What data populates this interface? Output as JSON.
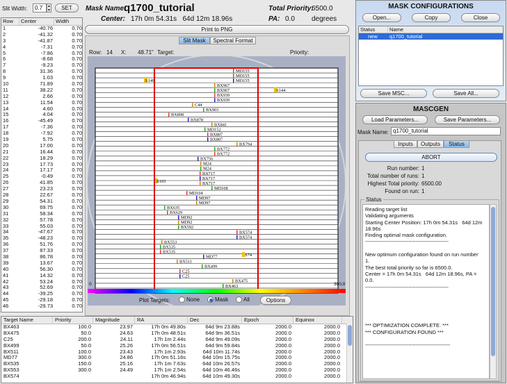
{
  "slit_width": {
    "label": "Slit Width:",
    "value": "0.7",
    "set_label": "SET"
  },
  "slit_table": {
    "headers": [
      "Row",
      "Center",
      "Width"
    ],
    "rows": [
      [
        "1",
        "-40.76",
        "0.70"
      ],
      [
        "2",
        "-41.32",
        "0.70"
      ],
      [
        "3",
        "-41.87",
        "0.70"
      ],
      [
        "4",
        "-7.31",
        "0.70"
      ],
      [
        "5",
        "-7.86",
        "0.70"
      ],
      [
        "6",
        "-8.68",
        "0.70"
      ],
      [
        "7",
        "-9.23",
        "0.70"
      ],
      [
        "8",
        "31.36",
        "0.70"
      ],
      [
        "9",
        "1.03",
        "0.70"
      ],
      [
        "10",
        "71.89",
        "0.70"
      ],
      [
        "11",
        "38.22",
        "0.70"
      ],
      [
        "12",
        "2.66",
        "0.70"
      ],
      [
        "13",
        "11.54",
        "0.70"
      ],
      [
        "14",
        "4.60",
        "0.70"
      ],
      [
        "15",
        "4.04",
        "0.70"
      ],
      [
        "16",
        "-45.49",
        "0.70"
      ],
      [
        "17",
        "-7.36",
        "0.70"
      ],
      [
        "18",
        "-7.92",
        "0.70"
      ],
      [
        "19",
        "5.75",
        "0.70"
      ],
      [
        "20",
        "17.00",
        "0.70"
      ],
      [
        "21",
        "16.44",
        "0.70"
      ],
      [
        "22",
        "18.29",
        "0.70"
      ],
      [
        "23",
        "17.73",
        "0.70"
      ],
      [
        "24",
        "17.17",
        "0.70"
      ],
      [
        "25",
        "-0.49",
        "0.70"
      ],
      [
        "26",
        "41.85",
        "0.70"
      ],
      [
        "27",
        "23.23",
        "0.70"
      ],
      [
        "28",
        "22.67",
        "0.70"
      ],
      [
        "29",
        "54.31",
        "0.70"
      ],
      [
        "30",
        "69.75",
        "0.70"
      ],
      [
        "31",
        "58.34",
        "0.70"
      ],
      [
        "32",
        "57.78",
        "0.70"
      ],
      [
        "33",
        "55.03",
        "0.70"
      ],
      [
        "34",
        "-47.67",
        "0.70"
      ],
      [
        "35",
        "-48.23",
        "0.70"
      ],
      [
        "36",
        "51.76",
        "0.70"
      ],
      [
        "37",
        "87.33",
        "0.70"
      ],
      [
        "38",
        "86.78",
        "0.70"
      ],
      [
        "39",
        "13.67",
        "0.70"
      ],
      [
        "40",
        "56.30",
        "0.70"
      ],
      [
        "41",
        "14.32",
        "0.70"
      ],
      [
        "42",
        "53.24",
        "0.70"
      ],
      [
        "43",
        "52.69",
        "0.70"
      ],
      [
        "44",
        "-39.25",
        "0.70"
      ],
      [
        "45",
        "-29.18",
        "0.70"
      ],
      [
        "46",
        "-29.73",
        "0.70"
      ]
    ]
  },
  "header": {
    "mask_name_label": "Mask Name:",
    "mask_name": "q1700_tutorial",
    "total_priority_label": "Total Priority:",
    "total_priority": "6500.0",
    "center_label": "Center:",
    "center_value": "17h 0m 54.31s   64d 12m 18.96s",
    "pa_label": "PA:",
    "pa_value": "0.0",
    "pa_unit": "degrees"
  },
  "print_button": "Print to PNG",
  "view_tabs": [
    "Slit Mask",
    "Spectral Format"
  ],
  "info_bar": {
    "row_label": "Row:",
    "row_value": "14",
    "x_label": "X:",
    "x_value": "48.71\"",
    "target_label": "Target:",
    "priority_label": "Priority:"
  },
  "plot": {
    "scale_min": "0",
    "scale_max": "300.0",
    "labels": [
      {
        "t": "MD155",
        "c": "MD155"
      },
      {
        "t": "MD155"
      },
      {
        "t": "MD155"
      },
      {
        "t": "BX967"
      },
      {
        "t": "BX967"
      },
      {
        "t": "BX939"
      },
      {
        "t": "BX939"
      },
      {
        "t": "C44"
      },
      {
        "t": "BX903"
      },
      {
        "t": "BX898"
      },
      {
        "t": "BX878"
      },
      {
        "t": "BX841"
      },
      {
        "t": "MD152"
      },
      {
        "t": "BX807"
      },
      {
        "t": "BX807"
      },
      {
        "t": "BX794"
      },
      {
        "t": "BX772"
      },
      {
        "t": "BX772"
      },
      {
        "t": "BX756"
      },
      {
        "t": "M24"
      },
      {
        "t": "M24"
      },
      {
        "t": "BX717"
      },
      {
        "t": "BX717"
      },
      {
        "t": "BX717"
      },
      {
        "t": "MD108"
      },
      {
        "t": "MD104"
      },
      {
        "t": "MD97"
      },
      {
        "t": "MD97"
      },
      {
        "t": "BX635"
      },
      {
        "t": "BX629"
      },
      {
        "t": "MD92"
      },
      {
        "t": "MD92"
      },
      {
        "t": "BX592"
      },
      {
        "t": "BX574"
      },
      {
        "t": "BX574"
      },
      {
        "t": "BX553"
      },
      {
        "t": "BX535"
      },
      {
        "t": "BX535"
      },
      {
        "t": "MD77"
      },
      {
        "t": "BX511"
      },
      {
        "t": "BX499"
      },
      {
        "t": "C25"
      },
      {
        "t": "C25"
      },
      {
        "t": "BX475"
      },
      {
        "t": "BX463"
      },
      {
        "t": "BX463"
      }
    ],
    "side_labels": {
      "s149": "S149",
      "s144": "S144",
      "s103": "S103",
      "s74": "S74"
    }
  },
  "plot_targets": {
    "label": "Plot Targets:",
    "options": [
      "None",
      "Mask",
      "All"
    ],
    "selected": "Mask",
    "options_button": "Options"
  },
  "target_table": {
    "headers": [
      "Target Name",
      "Priority",
      "Magnitude",
      "RA",
      "Dec",
      "Epoch",
      "Equinox"
    ],
    "rows": [
      [
        "BX463",
        "100.0",
        "23.97",
        "17h 0m 49.80s",
        "64d 9m 23.88s",
        "2000.0",
        "2000.0"
      ],
      [
        "BX475",
        "50.0",
        "24.63",
        "17h 0m 48.51s",
        "64d 9m 36.51s",
        "2000.0",
        "2000.0"
      ],
      [
        "C25",
        "200.0",
        "24.11",
        "17h 1m 2.44s",
        "64d 9m 49.09s",
        "2000.0",
        "2000.0"
      ],
      [
        "BX499",
        "50.0",
        "25.26",
        "17h 0m 56.51s",
        "64d 9m 59.84s",
        "2000.0",
        "2000.0"
      ],
      [
        "BX511",
        "100.0",
        "23.43",
        "17h 1m 2.93s",
        "64d 10m 11.74s",
        "2000.0",
        "2000.0"
      ],
      [
        "MD77",
        "300.0",
        "24.86",
        "17h 0m 51.16s",
        "64d 10m 15.75s",
        "2000.0",
        "2000.0"
      ],
      [
        "BX535",
        "150.0",
        "25.16",
        "17h 1m 7.63s",
        "64d 10m 26.57s",
        "2000.0",
        "2000.0"
      ],
      [
        "BX553",
        "300.0",
        "24.49",
        "17h 1m 2.54s",
        "64d 10m 46.46s",
        "2000.0",
        "2000.0"
      ],
      [
        "BX574",
        "",
        "",
        "17h 0m 46.94s",
        "64d 10m 49.30s",
        "2000.0",
        "2000.0"
      ]
    ]
  },
  "mask_config": {
    "title": "MASK CONFIGURATIONS",
    "open": "Open...",
    "copy": "Copy",
    "close": "Close",
    "col_status": "Status",
    "col_name": "Name",
    "rows": [
      {
        "status": "new",
        "name": "q1700_tutorial"
      }
    ],
    "save_msc": "Save MSC...",
    "save_all": "Save All..."
  },
  "mascgen": {
    "title": "MASCGEN",
    "load": "Load Parameters...",
    "save": "Save Parameters...",
    "mask_name_label": "Mask Name:",
    "mask_name": "q1700_tutorial",
    "tabs": [
      "Inputs",
      "Outputs",
      "Status"
    ],
    "abort": "ABORT",
    "stats": [
      {
        "label": "Run number:",
        "value": "1"
      },
      {
        "label": "Total number of runs:",
        "value": "1"
      },
      {
        "label": "Highest Total priority:",
        "value": "6500.00"
      },
      {
        "label": "Found on run:",
        "value": "1"
      }
    ],
    "status_title": "Status",
    "status_lines": [
      "Reading target list",
      "Validating arguments",
      "Starting Center Position: 17h 0m 54.31s   64d 12m",
      "18.96s",
      "Finding optimal mask configuration.",
      "------------------------------------------------",
      "",
      "New optimum configuration found on run number",
      "1.",
      "The best total priority so far is 6500.0.",
      "Center = 17h 0m 54.31s   64d 12m 18.96s, PA =",
      "0.0.",
      "------------------------------------------------",
      "",
      "",
      "",
      "",
      "",
      "*** OPTIMIZATION COMPLETE. ***",
      "*** CONFIGURATION FOUND ***",
      "",
      "-------------------------------------------------"
    ]
  }
}
